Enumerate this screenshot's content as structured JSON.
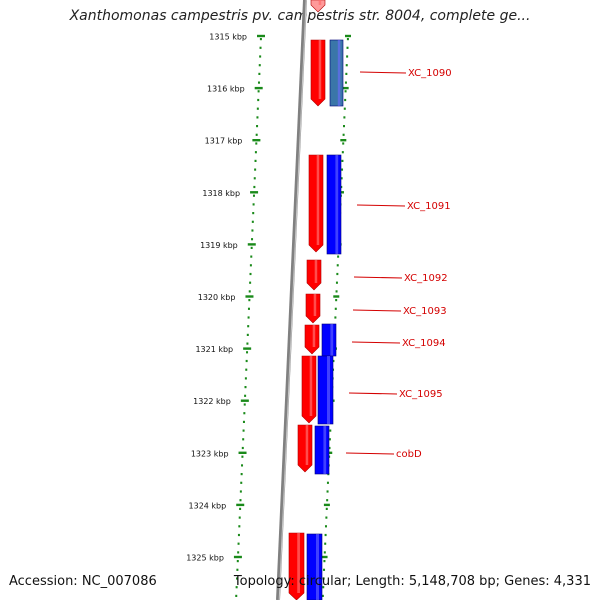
{
  "map": {
    "title": "Xanthomonas campestris pv. campestris str. 8004, complete ge...",
    "accession_text": "Accession: NC_007086",
    "summary_text": "Topology: circular; Length: 5,148,708 bp; Genes: 4,331",
    "colors": {
      "forward_gene": "#ff0000",
      "reverse_gene": "#0000ff",
      "reverse_gene_selected": "#3a76a8",
      "ruler_tick": "#1a8a1a",
      "backbone": "#808080",
      "gene_label": "#d40000"
    },
    "ruler_labels": [
      {
        "text": "1315 kbp",
        "kbp": 1315
      },
      {
        "text": "1316 kbp",
        "kbp": 1316
      },
      {
        "text": "1317 kbp",
        "kbp": 1317
      },
      {
        "text": "1318 kbp",
        "kbp": 1318
      },
      {
        "text": "1319 kbp",
        "kbp": 1319
      },
      {
        "text": "1320 kbp",
        "kbp": 1320
      },
      {
        "text": "1321 kbp",
        "kbp": 1321
      },
      {
        "text": "1322 kbp",
        "kbp": 1322
      },
      {
        "text": "1323 kbp",
        "kbp": 1323
      },
      {
        "text": "1324 kbp",
        "kbp": 1324
      },
      {
        "text": "1325 kbp",
        "kbp": 1325
      }
    ],
    "gene_labels": [
      "XC_1090",
      "XC_1091",
      "XC_1092",
      "XC_1093",
      "XC_1094",
      "XC_1095",
      "cobD"
    ]
  }
}
